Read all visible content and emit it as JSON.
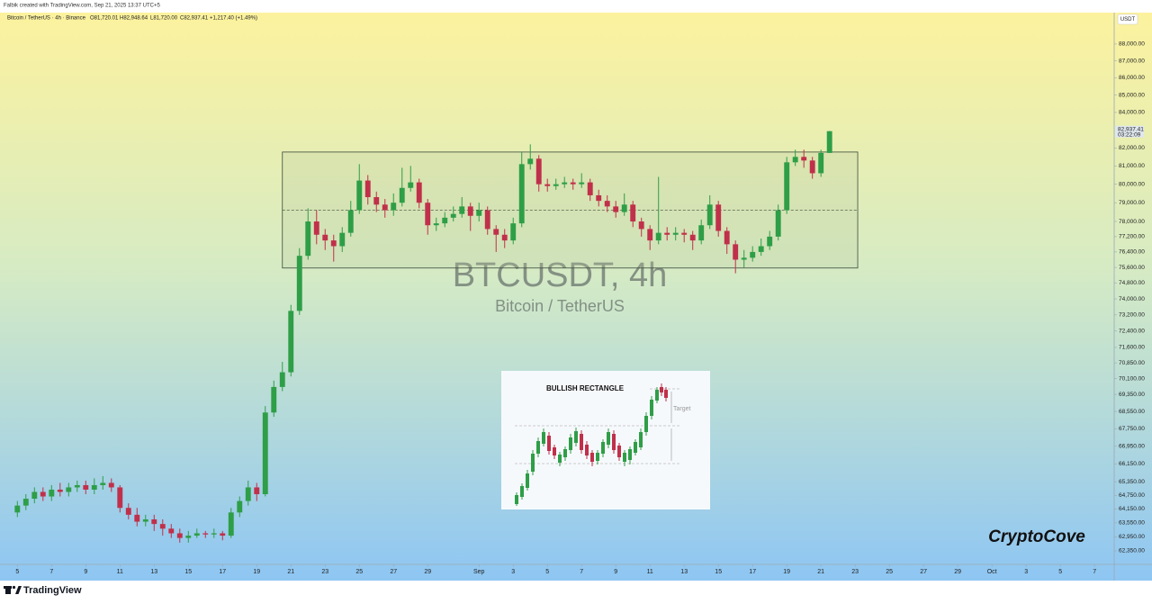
{
  "chart_data": {
    "type": "candlestick",
    "header": "Falbik created with TradingView.com, Sep 21, 2025 13:37 UTC+5",
    "title": "Bitcoin / TetherUS · 4h · Binance",
    "ohlc_labels": [
      "O81,720.01",
      "H82,948.64",
      "L81,720.00",
      "C82,937.41",
      "+1,217.40 (+1.49%)"
    ],
    "watermark": "BTCUSDT, 4h",
    "watermark_subtitle": "Bitcoin / TetherUS",
    "signature": "CryptoCove",
    "currency": "USDT",
    "last_price_label": "82,937.41",
    "countdown": "03:22:09",
    "brand": "TradingView",
    "inset": {
      "title": "BULLISH RECTANGLE",
      "target": "Target"
    },
    "up_color": "#2e9e47",
    "down_color": "#c0304a",
    "log": true,
    "grid": false,
    "x": [
      0,
      1,
      2,
      3,
      4,
      5,
      6,
      7,
      8,
      9,
      10,
      11,
      12,
      13,
      14,
      15,
      16,
      17,
      18,
      19,
      20,
      21,
      22,
      23,
      24,
      25,
      26,
      27,
      28,
      29,
      30,
      31,
      32,
      33,
      34,
      35,
      36,
      37,
      38,
      39,
      40,
      41,
      42,
      43,
      44,
      45,
      46,
      47,
      48,
      49,
      50,
      51,
      52,
      53,
      54,
      55,
      56,
      57,
      58,
      59,
      60,
      61,
      62,
      63,
      64,
      65,
      66,
      67,
      68,
      69,
      70,
      71,
      72,
      73,
      74,
      75,
      76,
      77,
      78,
      79,
      80,
      81,
      82,
      83,
      84,
      85,
      86,
      87,
      88,
      89,
      90,
      91,
      92,
      93,
      94,
      95
    ],
    "open": [
      64000,
      64300,
      64600,
      64900,
      64700,
      65000,
      64900,
      65100,
      65200,
      65000,
      65200,
      65300,
      65100,
      64200,
      63900,
      63600,
      63700,
      63500,
      63300,
      63100,
      62900,
      63000,
      63100,
      63050,
      63100,
      63000,
      64000,
      64500,
      65100,
      64800,
      68500,
      69700,
      70400,
      73400,
      76200,
      78000,
      77300,
      77000,
      76700,
      77400,
      78600,
      80200,
      79300,
      78900,
      78600,
      79000,
      79800,
      80100,
      79000,
      77800,
      77900,
      78200,
      78400,
      78800,
      78300,
      78600,
      77600,
      77300,
      77000,
      77900,
      81100,
      81400,
      80000,
      79900,
      80000,
      80100,
      80000,
      80100,
      79400,
      79100,
      78800,
      78500,
      78900,
      78000,
      77600,
      77000,
      77400,
      77300,
      77400,
      77300,
      77000,
      77800,
      78900,
      77500,
      76800,
      76000,
      76100,
      76400,
      76700,
      77200,
      78600,
      81200,
      81500,
      81300,
      80600,
      81720.01
    ],
    "high": [
      64500,
      64800,
      65100,
      65100,
      65200,
      65300,
      65300,
      65400,
      65400,
      65500,
      65600,
      65500,
      65200,
      64400,
      64200,
      63900,
      63900,
      63700,
      63500,
      63300,
      63200,
      63300,
      63200,
      63300,
      63200,
      64200,
      64700,
      65400,
      65300,
      68800,
      70000,
      70900,
      73700,
      76600,
      78700,
      78600,
      77600,
      77300,
      77700,
      79100,
      81100,
      80500,
      79600,
      79200,
      79500,
      80900,
      81000,
      80300,
      79200,
      78200,
      78500,
      78800,
      79300,
      79000,
      79000,
      78800,
      77800,
      77600,
      78200,
      81800,
      82200,
      81600,
      80300,
      80300,
      80400,
      80300,
      80600,
      80300,
      79700,
      79400,
      79100,
      79500,
      79100,
      78200,
      77800,
      80400,
      77700,
      77700,
      77600,
      77500,
      78100,
      79400,
      79100,
      77700,
      77000,
      76500,
      76700,
      77100,
      77500,
      78900,
      81500,
      81900,
      81900,
      81500,
      81900,
      82948.64
    ],
    "low": [
      63800,
      64100,
      64400,
      64500,
      64500,
      64700,
      64700,
      64900,
      64800,
      64800,
      65000,
      64900,
      64000,
      63700,
      63400,
      63400,
      63200,
      63000,
      62900,
      62700,
      62700,
      62900,
      62900,
      62900,
      62800,
      62900,
      63800,
      64300,
      64500,
      64700,
      68300,
      69500,
      70200,
      73200,
      76000,
      76800,
      76500,
      75900,
      76400,
      77200,
      78400,
      78900,
      78500,
      78200,
      78300,
      78800,
      79600,
      78700,
      77300,
      77500,
      77700,
      78000,
      78200,
      77500,
      78000,
      77300,
      76400,
      76600,
      76800,
      77700,
      80800,
      79600,
      79600,
      79700,
      79800,
      79700,
      79800,
      79100,
      78800,
      78500,
      78200,
      78300,
      77700,
      77200,
      76500,
      76800,
      77000,
      77000,
      76900,
      76500,
      76800,
      77600,
      77200,
      76300,
      75300,
      75600,
      75900,
      76200,
      76500,
      77000,
      78400,
      81000,
      80900,
      80300,
      80400,
      81720
    ],
    "close": [
      64300,
      64600,
      64900,
      64700,
      65000,
      64900,
      65100,
      65200,
      65000,
      65200,
      65300,
      65100,
      64200,
      63900,
      63600,
      63700,
      63500,
      63300,
      63100,
      62900,
      63000,
      63100,
      63050,
      63100,
      63000,
      64000,
      64500,
      65100,
      64800,
      68500,
      69700,
      70400,
      73400,
      76200,
      78000,
      77300,
      77000,
      76700,
      77400,
      78600,
      80200,
      79300,
      78900,
      78600,
      79000,
      79800,
      80100,
      79000,
      77800,
      77900,
      78200,
      78400,
      78800,
      78300,
      78600,
      77600,
      77300,
      77000,
      77900,
      81100,
      81400,
      80000,
      79900,
      80000,
      80100,
      80000,
      80100,
      79400,
      79100,
      78800,
      78500,
      78900,
      78000,
      77600,
      77000,
      77400,
      77300,
      77400,
      77300,
      77000,
      77800,
      78900,
      77500,
      76800,
      76000,
      76100,
      76400,
      76700,
      77200,
      78600,
      81200,
      81500,
      81300,
      80600,
      81720,
      82937.41
    ],
    "rectangle": {
      "xlim": [
        31,
        98.3
      ],
      "ylim": [
        75570,
        81770
      ]
    },
    "xlim": [
      -1.4,
      128.3
    ],
    "xticks": [
      {
        "value": 0,
        "label": "5"
      },
      {
        "value": 4,
        "label": "7"
      },
      {
        "value": 8,
        "label": "9"
      },
      {
        "value": 12,
        "label": "11"
      },
      {
        "value": 16,
        "label": "13"
      },
      {
        "value": 20,
        "label": "15"
      },
      {
        "value": 24,
        "label": "17"
      },
      {
        "value": 28,
        "label": "19"
      },
      {
        "value": 32,
        "label": "21"
      },
      {
        "value": 36,
        "label": "23"
      },
      {
        "value": 40,
        "label": "25"
      },
      {
        "value": 44,
        "label": "27"
      },
      {
        "value": 48,
        "label": "29"
      },
      {
        "value": 54,
        "label": "Sep"
      },
      {
        "value": 58,
        "label": "3"
      },
      {
        "value": 62,
        "label": "5"
      },
      {
        "value": 66,
        "label": "7"
      },
      {
        "value": 70,
        "label": "9"
      },
      {
        "value": 74,
        "label": "11"
      },
      {
        "value": 78,
        "label": "13"
      },
      {
        "value": 82,
        "label": "15"
      },
      {
        "value": 86,
        "label": "17"
      },
      {
        "value": 90,
        "label": "19"
      },
      {
        "value": 94,
        "label": "21"
      },
      {
        "value": 98,
        "label": "23"
      },
      {
        "value": 102,
        "label": "25"
      },
      {
        "value": 106,
        "label": "27"
      },
      {
        "value": 110,
        "label": "29"
      },
      {
        "value": 114,
        "label": "Oct"
      },
      {
        "value": 118,
        "label": "3"
      },
      {
        "value": 122,
        "label": "5"
      },
      {
        "value": 126,
        "label": "7"
      }
    ],
    "ylim": [
      61780,
      89900
    ],
    "yticks": [
      {
        "value": 88000,
        "label": "88,000.00"
      },
      {
        "value": 87000,
        "label": "87,000.00"
      },
      {
        "value": 86000,
        "label": "86,000.00"
      },
      {
        "value": 85000,
        "label": "85,000.00"
      },
      {
        "value": 84000,
        "label": "84,000.00"
      },
      {
        "value": 82000,
        "label": "82,000.00"
      },
      {
        "value": 81000,
        "label": "81,000.00"
      },
      {
        "value": 80000,
        "label": "80,000.00"
      },
      {
        "value": 79000,
        "label": "79,000.00"
      },
      {
        "value": 78000,
        "label": "78,000.00"
      },
      {
        "value": 77200,
        "label": "77,200.00"
      },
      {
        "value": 76400,
        "label": "76,400.00"
      },
      {
        "value": 75600,
        "label": "75,600.00"
      },
      {
        "value": 74800,
        "label": "74,800.00"
      },
      {
        "value": 74000,
        "label": "74,000.00"
      },
      {
        "value": 73200,
        "label": "73,200.00"
      },
      {
        "value": 72400,
        "label": "72,400.00"
      },
      {
        "value": 71600,
        "label": "71,600.00"
      },
      {
        "value": 70850,
        "label": "70,850.00"
      },
      {
        "value": 70100,
        "label": "70,100.00"
      },
      {
        "value": 69350,
        "label": "69,350.00"
      },
      {
        "value": 68550,
        "label": "68,550.00"
      },
      {
        "value": 67750,
        "label": "67,750.00"
      },
      {
        "value": 66950,
        "label": "66,950.00"
      },
      {
        "value": 66150,
        "label": "66,150.00"
      },
      {
        "value": 65350,
        "label": "65,350.00"
      },
      {
        "value": 64750,
        "label": "64,750.00"
      },
      {
        "value": 64150,
        "label": "64,150.00"
      },
      {
        "value": 63550,
        "label": "63,550.00"
      },
      {
        "value": 62950,
        "label": "62,950.00"
      },
      {
        "value": 62350,
        "label": "62,350.00"
      }
    ]
  }
}
